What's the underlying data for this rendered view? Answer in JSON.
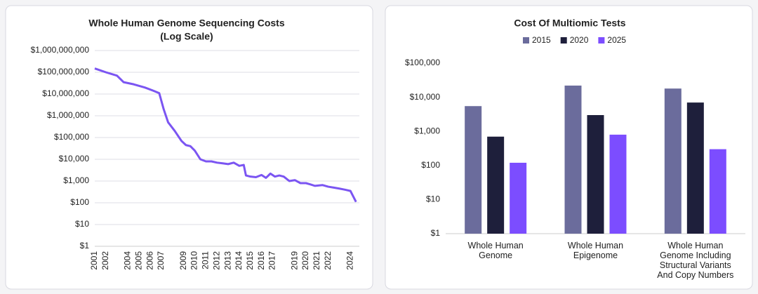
{
  "chart_data": [
    {
      "type": "line",
      "title": "Whole Human Genome Sequencing Costs",
      "subtitle": "(Log Scale)",
      "yscale": "log",
      "grid": true,
      "x": [
        2001.0,
        2002.0,
        2003.0,
        2003.6,
        2004.5,
        2005.5,
        2006.3,
        2006.8,
        2007.2,
        2007.6,
        2008.2,
        2008.8,
        2009.2,
        2009.6,
        2010.0,
        2010.5,
        2011.0,
        2011.5,
        2012.0,
        2012.5,
        2013.0,
        2013.5,
        2014.0,
        2014.4,
        2014.6,
        2015.0,
        2015.5,
        2016.0,
        2016.4,
        2016.8,
        2017.2,
        2017.6,
        2018.0,
        2018.5,
        2019.0,
        2019.5,
        2020.0,
        2020.4,
        2020.8,
        2021.5,
        2022.0,
        2022.5,
        2023.0,
        2023.5,
        2024.0,
        2024.5
      ],
      "series": [
        {
          "name": "Cost",
          "color": "#7b55f2",
          "values": [
            150000000,
            100000000,
            70000000,
            35000000,
            28000000,
            20000000,
            14000000,
            11000000,
            2000000,
            500000,
            200000,
            70000,
            45000,
            40000,
            25000,
            10000,
            8000,
            8000,
            7000,
            6500,
            6000,
            7000,
            5000,
            5500,
            1800,
            1600,
            1500,
            1900,
            1400,
            2200,
            1600,
            1800,
            1600,
            1000,
            1100,
            800,
            800,
            700,
            600,
            650,
            550,
            500,
            450,
            400,
            350,
            110
          ]
        }
      ],
      "xlim": [
        2001,
        2024.8
      ],
      "xticks": [
        2001,
        2002,
        2004,
        2005,
        2006,
        2007,
        2009,
        2010,
        2011,
        2012,
        2013,
        2014,
        2015,
        2016,
        2017,
        2019,
        2020,
        2021,
        2022,
        2024
      ],
      "ylim": [
        1,
        1000000000
      ],
      "yticks": [
        {
          "value": 1,
          "label": "$1"
        },
        {
          "value": 10,
          "label": "$10"
        },
        {
          "value": 100,
          "label": "$100"
        },
        {
          "value": 1000,
          "label": "$1,000"
        },
        {
          "value": 10000,
          "label": "$10,000"
        },
        {
          "value": 100000,
          "label": "$100,000"
        },
        {
          "value": 1000000,
          "label": "$1,000,000"
        },
        {
          "value": 10000000,
          "label": "$10,000,000"
        },
        {
          "value": 100000000,
          "label": "$100,000,000"
        },
        {
          "value": 1000000000,
          "label": "$1,000,000,000"
        }
      ]
    },
    {
      "type": "bar",
      "title": "Cost Of Multiomic Tests",
      "yscale": "log",
      "grid": false,
      "categories": [
        "Whole Human Genome",
        "Whole Human Epigenome",
        "Whole Human Genome Including Structural Variants And Copy Numbers"
      ],
      "series": [
        {
          "name": "2015",
          "color": "#6b6c9c",
          "values": [
            5500,
            22000,
            18000
          ]
        },
        {
          "name": "2020",
          "color": "#1e1f3b",
          "values": [
            700,
            3000,
            7000
          ]
        },
        {
          "name": "2025",
          "color": "#7c4dff",
          "values": [
            120,
            800,
            300
          ]
        }
      ],
      "ylim": [
        1,
        100000
      ],
      "yticks": [
        {
          "value": 1,
          "label": "$1"
        },
        {
          "value": 10,
          "label": "$10"
        },
        {
          "value": 100,
          "label": "$100"
        },
        {
          "value": 1000,
          "label": "$1,000"
        },
        {
          "value": 10000,
          "label": "$10,000"
        },
        {
          "value": 100000,
          "label": "$100,000"
        }
      ]
    }
  ]
}
